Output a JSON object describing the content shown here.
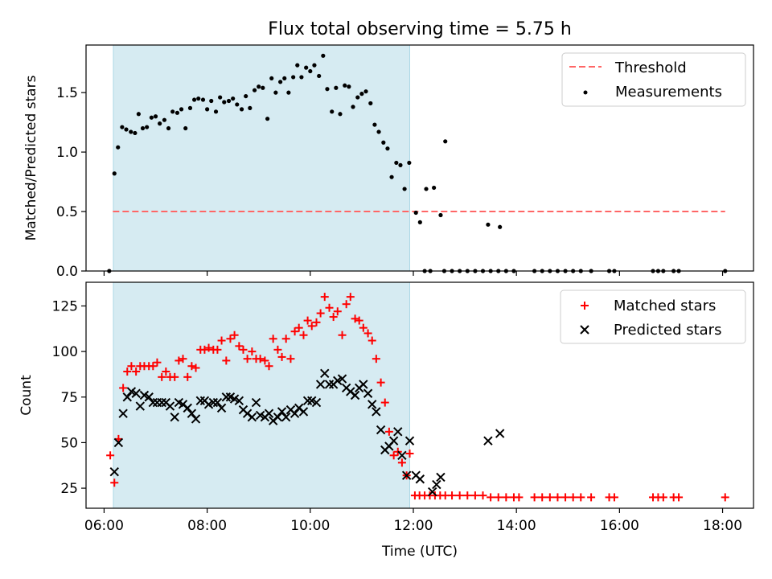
{
  "title": "Flux total observing time = 5.75 h",
  "colors": {
    "shade": "#add8e6",
    "threshold": "#ff6666",
    "measurement": "#000000",
    "matched": "#ff0000",
    "predicted": "#000000"
  },
  "chart_data": [
    {
      "type": "scatter",
      "panel": "top",
      "ylabel": "Matched/Predicted stars",
      "xlim": [
        5.65,
        18.6
      ],
      "ylim": [
        0,
        1.9
      ],
      "yticks": [
        0.0,
        0.5,
        1.0,
        1.5
      ],
      "ytick_labels": [
        "0.0",
        "0.5",
        "1.0",
        "1.5"
      ],
      "shaded_span": {
        "x_start": 6.18,
        "x_end": 11.93
      },
      "legend": {
        "position": "top-right",
        "entries": [
          "Threshold",
          "Measurements"
        ]
      },
      "threshold": {
        "name": "Threshold",
        "y": 0.5,
        "x_start": 6.17,
        "x_end": 18.05
      },
      "series": [
        {
          "name": "Measurements",
          "x": [
            6.1,
            6.2,
            6.27,
            6.35,
            6.43,
            6.52,
            6.6,
            6.67,
            6.75,
            6.83,
            6.92,
            7.0,
            7.08,
            7.17,
            7.25,
            7.33,
            7.42,
            7.5,
            7.58,
            7.67,
            7.75,
            7.83,
            7.92,
            8.0,
            8.08,
            8.17,
            8.25,
            8.33,
            8.42,
            8.5,
            8.58,
            8.67,
            8.75,
            8.83,
            8.92,
            9.0,
            9.08,
            9.17,
            9.25,
            9.33,
            9.42,
            9.5,
            9.58,
            9.67,
            9.75,
            9.83,
            9.92,
            10.0,
            10.08,
            10.17,
            10.25,
            10.33,
            10.42,
            10.5,
            10.58,
            10.67,
            10.75,
            10.83,
            10.92,
            11.0,
            11.08,
            11.17,
            11.25,
            11.33,
            11.42,
            11.5,
            11.58,
            11.67,
            11.75,
            11.83,
            11.92,
            12.05,
            12.13,
            12.25,
            12.4,
            12.53,
            12.62,
            13.45,
            13.68,
            12.22,
            12.33,
            12.6,
            12.75,
            12.9,
            13.05,
            13.2,
            13.35,
            13.5,
            13.65,
            13.8,
            13.95,
            14.35,
            14.5,
            14.65,
            14.8,
            14.95,
            15.1,
            15.25,
            15.45,
            15.8,
            15.9,
            16.65,
            16.75,
            16.85,
            17.05,
            17.15,
            18.05
          ],
          "y": [
            0.0,
            0.82,
            1.04,
            1.21,
            1.19,
            1.17,
            1.16,
            1.32,
            1.2,
            1.21,
            1.29,
            1.3,
            1.24,
            1.27,
            1.2,
            1.34,
            1.33,
            1.36,
            1.2,
            1.37,
            1.44,
            1.45,
            1.44,
            1.36,
            1.43,
            1.34,
            1.46,
            1.42,
            1.43,
            1.45,
            1.4,
            1.36,
            1.47,
            1.37,
            1.52,
            1.55,
            1.54,
            1.28,
            1.62,
            1.5,
            1.59,
            1.62,
            1.5,
            1.63,
            1.73,
            1.63,
            1.71,
            1.68,
            1.73,
            1.64,
            1.81,
            1.53,
            1.34,
            1.54,
            1.32,
            1.56,
            1.55,
            1.38,
            1.46,
            1.49,
            1.51,
            1.41,
            1.23,
            1.17,
            1.08,
            1.03,
            0.79,
            0.91,
            0.89,
            0.69,
            0.91,
            0.49,
            0.41,
            0.69,
            0.7,
            0.47,
            1.09,
            0.39,
            0.37,
            0.0,
            0.0,
            0.0,
            0.0,
            0.0,
            0.0,
            0.0,
            0.0,
            0.0,
            0.0,
            0.0,
            0.0,
            0.0,
            0.0,
            0.0,
            0.0,
            0.0,
            0.0,
            0.0,
            0.0,
            0.0,
            0.0,
            0.0,
            0.0,
            0.0,
            0.0,
            0.0,
            0.0
          ]
        }
      ]
    },
    {
      "type": "scatter",
      "panel": "bottom",
      "xlabel": "Time (UTC)",
      "ylabel": "Count",
      "xlim": [
        5.65,
        18.6
      ],
      "ylim": [
        14,
        138
      ],
      "xticks": [
        6,
        8,
        10,
        12,
        14,
        16,
        18
      ],
      "xtick_labels": [
        "06:00",
        "08:00",
        "10:00",
        "12:00",
        "14:00",
        "16:00",
        "18:00"
      ],
      "yticks": [
        25,
        50,
        75,
        100,
        125
      ],
      "ytick_labels": [
        "25",
        "50",
        "75",
        "100",
        "125"
      ],
      "shaded_span": {
        "x_start": 6.18,
        "x_end": 11.93
      },
      "legend": {
        "position": "top-right",
        "entries": [
          "Matched stars",
          "Predicted stars"
        ]
      },
      "series": [
        {
          "name": "Matched stars",
          "marker": "+",
          "x": [
            6.12,
            6.2,
            6.28,
            6.37,
            6.45,
            6.53,
            6.62,
            6.7,
            6.78,
            6.87,
            6.95,
            7.03,
            7.12,
            7.2,
            7.28,
            7.37,
            7.45,
            7.53,
            7.62,
            7.7,
            7.78,
            7.87,
            7.95,
            8.03,
            8.12,
            8.2,
            8.28,
            8.37,
            8.45,
            8.53,
            8.62,
            8.7,
            8.78,
            8.87,
            8.95,
            9.03,
            9.12,
            9.2,
            9.28,
            9.37,
            9.45,
            9.53,
            9.62,
            9.7,
            9.78,
            9.87,
            9.95,
            10.03,
            10.12,
            10.2,
            10.28,
            10.37,
            10.45,
            10.53,
            10.62,
            10.7,
            10.78,
            10.87,
            10.95,
            11.03,
            11.12,
            11.2,
            11.28,
            11.37,
            11.45,
            11.53,
            11.62,
            11.7,
            11.78,
            11.87,
            11.93,
            12.03,
            12.12,
            12.22,
            12.32,
            12.42,
            12.52,
            12.62,
            12.75,
            12.9,
            13.05,
            13.2,
            13.35,
            13.5,
            13.65,
            13.8,
            13.95,
            14.05,
            14.35,
            14.5,
            14.65,
            14.8,
            14.95,
            15.1,
            15.25,
            15.45,
            15.8,
            15.9,
            16.65,
            16.75,
            16.85,
            17.05,
            17.15,
            18.05
          ],
          "y": [
            43,
            28,
            52,
            80,
            89,
            92,
            89,
            92,
            92,
            92,
            92,
            94,
            86,
            89,
            86,
            86,
            95,
            96,
            86,
            92,
            91,
            101,
            101,
            102,
            101,
            101,
            106,
            95,
            107,
            109,
            103,
            101,
            96,
            100,
            96,
            96,
            95,
            92,
            107,
            101,
            97,
            107,
            96,
            111,
            113,
            109,
            117,
            114,
            116,
            121,
            130,
            124,
            119,
            122,
            109,
            126,
            130,
            118,
            117,
            113,
            110,
            106,
            96,
            83,
            72,
            56,
            43,
            45,
            39,
            32,
            44,
            21,
            21,
            21,
            21,
            21,
            21,
            21,
            21,
            21,
            21,
            21,
            21,
            20,
            20,
            20,
            20,
            20,
            20,
            20,
            20,
            20,
            20,
            20,
            20,
            20,
            20,
            20,
            20,
            20,
            20,
            20,
            20,
            20
          ]
        },
        {
          "name": "Predicted stars",
          "marker": "x",
          "x": [
            6.2,
            6.28,
            6.37,
            6.45,
            6.53,
            6.62,
            6.7,
            6.78,
            6.87,
            6.95,
            7.03,
            7.12,
            7.2,
            7.28,
            7.37,
            7.45,
            7.53,
            7.62,
            7.7,
            7.78,
            7.87,
            7.95,
            8.03,
            8.12,
            8.2,
            8.28,
            8.37,
            8.45,
            8.53,
            8.62,
            8.7,
            8.78,
            8.87,
            8.95,
            9.03,
            9.12,
            9.2,
            9.28,
            9.37,
            9.45,
            9.53,
            9.62,
            9.7,
            9.78,
            9.87,
            9.95,
            10.03,
            10.12,
            10.2,
            10.28,
            10.37,
            10.45,
            10.53,
            10.62,
            10.7,
            10.78,
            10.87,
            10.95,
            11.03,
            11.12,
            11.2,
            11.28,
            11.37,
            11.45,
            11.53,
            11.62,
            11.7,
            11.78,
            11.87,
            11.93,
            12.05,
            12.13,
            12.37,
            12.45,
            12.53,
            13.45,
            13.68
          ],
          "y": [
            34,
            50,
            66,
            75,
            78,
            77,
            70,
            76,
            75,
            72,
            72,
            72,
            72,
            70,
            64,
            72,
            71,
            69,
            66,
            63,
            73,
            73,
            71,
            72,
            72,
            69,
            75,
            75,
            74,
            73,
            68,
            66,
            64,
            72,
            65,
            64,
            66,
            62,
            64,
            67,
            64,
            68,
            66,
            69,
            67,
            73,
            73,
            72,
            82,
            88,
            82,
            82,
            84,
            85,
            80,
            78,
            76,
            80,
            82,
            77,
            71,
            67,
            57,
            46,
            48,
            51,
            56,
            43,
            32,
            51,
            32,
            30,
            23,
            27,
            31,
            51,
            55
          ]
        }
      ]
    }
  ]
}
